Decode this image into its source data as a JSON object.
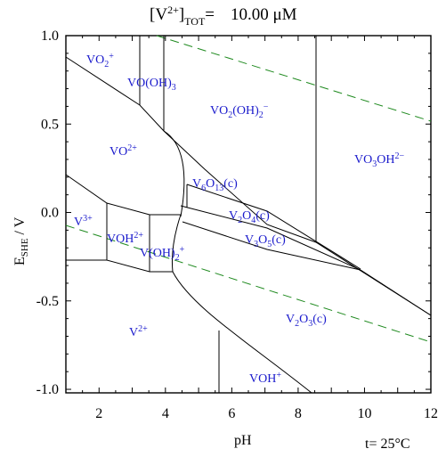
{
  "title": {
    "open": "[V",
    "charge": "2+",
    "close": "]",
    "sub": "TOT",
    "eq": "=",
    "value": "10.00 μM"
  },
  "temperature": "t= 25°C",
  "chart_data": {
    "type": "diagram",
    "xlabel": "pH",
    "ylabel": {
      "main": "E",
      "sub": "SHE",
      "rest": " / V"
    },
    "xlim": [
      1,
      12
    ],
    "ylim": [
      -1.02,
      1.0
    ],
    "xticks": [
      "2",
      "4",
      "6",
      "8",
      "10",
      "12"
    ],
    "yticks": [
      "1.0",
      "0.5",
      "0.0",
      "-0.5",
      "-1.0"
    ],
    "species": [
      {
        "base": "VO",
        "sub": "2",
        "sup": "+"
      },
      {
        "base": "VO(OH)",
        "sub": "3"
      },
      {
        "base": "VO",
        "sub": "2",
        "mid": "(OH)",
        "sub2": "2",
        "sup": "−"
      },
      {
        "base": "VO",
        "sup": "2+"
      },
      {
        "base": "VO",
        "sub": "3",
        "mid": "OH",
        "sup": "2−"
      },
      {
        "base": "V",
        "sub": "6",
        "mid": "O",
        "sub2": "13",
        "tail": "(c)"
      },
      {
        "base": "V",
        "sup": "3+"
      },
      {
        "base": "V",
        "sub": "2",
        "mid": "O",
        "sub2": "4",
        "tail": "(c)"
      },
      {
        "base": "VOH",
        "sup": "2+"
      },
      {
        "base": "V",
        "sub": "3",
        "mid": "O",
        "sub2": "5",
        "tail": "(c)"
      },
      {
        "base": "V(OH)",
        "sub": "2",
        "sup": "+"
      },
      {
        "base": "V",
        "sup": "2+"
      },
      {
        "base": "V",
        "sub": "2",
        "mid": "O",
        "sub2": "3",
        "tail": "(c)"
      },
      {
        "base": "VOH",
        "sup": "+"
      }
    ]
  }
}
